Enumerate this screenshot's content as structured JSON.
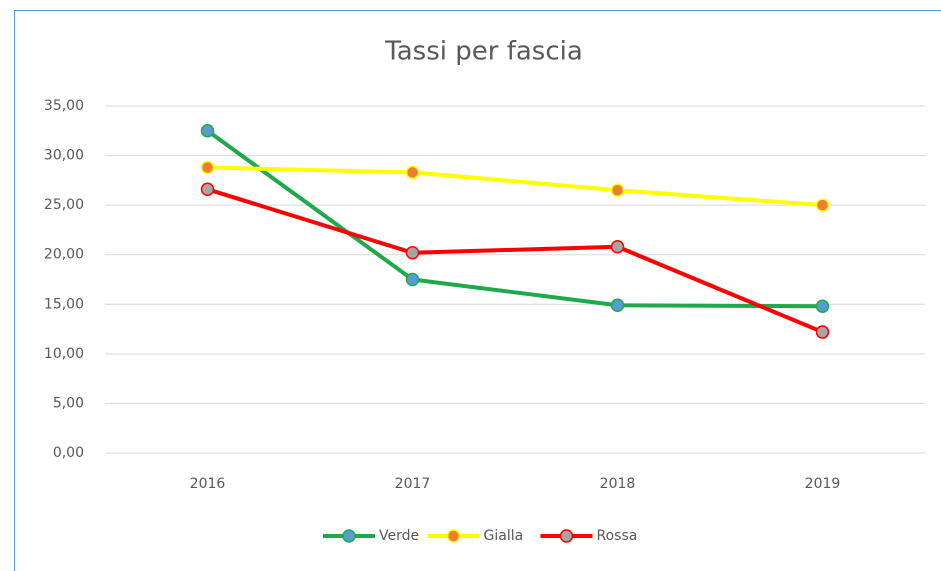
{
  "chart_data": {
    "type": "line",
    "title": "Tassi per fascia",
    "categories": [
      "2016",
      "2017",
      "2018",
      "2019"
    ],
    "series": [
      {
        "name": "Verde",
        "color": "#1eaa4b",
        "marker_color": "#5b9bd5",
        "values": [
          32.5,
          17.5,
          14.9,
          14.8
        ]
      },
      {
        "name": "Gialla",
        "color": "#ffff00",
        "marker_color": "#ed7d31",
        "values": [
          28.8,
          28.3,
          26.5,
          25.0
        ]
      },
      {
        "name": "Rossa",
        "color": "#ff0000",
        "marker_color": "#a5a5a5",
        "values": [
          26.6,
          20.2,
          20.8,
          12.2
        ]
      }
    ],
    "ylim": [
      0,
      35
    ],
    "yticks": [
      {
        "value": 0,
        "label": "0,00"
      },
      {
        "value": 5,
        "label": "5,00"
      },
      {
        "value": 10,
        "label": "10,00"
      },
      {
        "value": 15,
        "label": "15,00"
      },
      {
        "value": 20,
        "label": "20,00"
      },
      {
        "value": 25,
        "label": "25,00"
      },
      {
        "value": 30,
        "label": "30,00"
      },
      {
        "value": 35,
        "label": "35,00"
      }
    ],
    "grid": true,
    "legend": "bottom"
  }
}
